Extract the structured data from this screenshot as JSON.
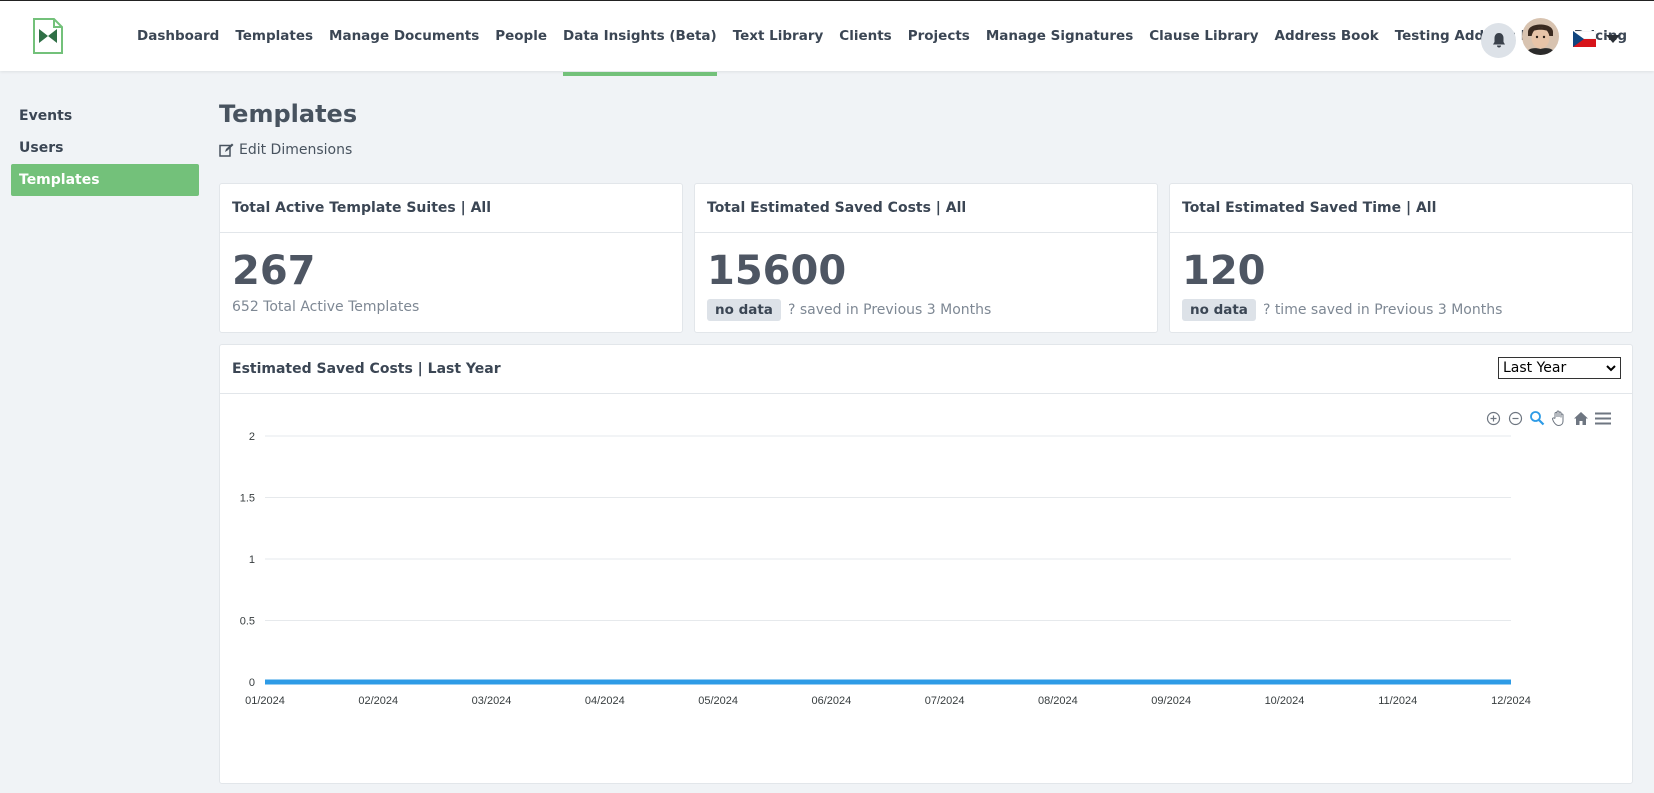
{
  "nav": {
    "items": [
      "Dashboard",
      "Templates",
      "Manage Documents",
      "People",
      "Data Insights (Beta)",
      "Text Library",
      "Clients",
      "Projects",
      "Manage Signatures",
      "Clause Library",
      "Address Book",
      "Testing Address book",
      "Pricing"
    ],
    "active_index": 4
  },
  "sidebar": {
    "items": [
      "Events",
      "Users",
      "Templates"
    ],
    "active_index": 2
  },
  "page": {
    "title": "Templates",
    "edit_dimensions": "Edit Dimensions"
  },
  "cards": [
    {
      "title": "Total Active Template Suites | All",
      "value": "267",
      "badge": "",
      "subtext": "652 Total Active Templates"
    },
    {
      "title": "Total Estimated Saved Costs | All",
      "value": "15600",
      "badge": "no data",
      "subtext": "? saved in Previous 3 Months"
    },
    {
      "title": "Total Estimated Saved Time | All",
      "value": "120",
      "badge": "no data",
      "subtext": "? time saved in Previous 3 Months"
    }
  ],
  "chart_panel": {
    "title": "Estimated Saved Costs | Last Year",
    "range_select": "Last Year"
  },
  "colors": {
    "accent": "#73c17a",
    "series": "#2e9be6"
  },
  "chart_data": {
    "type": "line",
    "categories": [
      "01/2024",
      "02/2024",
      "03/2024",
      "04/2024",
      "05/2024",
      "06/2024",
      "07/2024",
      "08/2024",
      "09/2024",
      "10/2024",
      "11/2024",
      "12/2024"
    ],
    "series": [
      {
        "values": [
          0,
          0,
          0,
          0,
          0,
          0,
          0,
          0,
          0,
          0,
          0,
          0
        ]
      }
    ],
    "ylim": [
      0,
      2
    ],
    "yticks": [
      "0",
      "0.5",
      "1",
      "1.5",
      "2"
    ],
    "grid": true,
    "toolbar_icons": [
      "zoom-in-icon",
      "zoom-out-icon",
      "zoom-select-icon",
      "pan-icon",
      "home-icon",
      "menu-icon"
    ]
  }
}
